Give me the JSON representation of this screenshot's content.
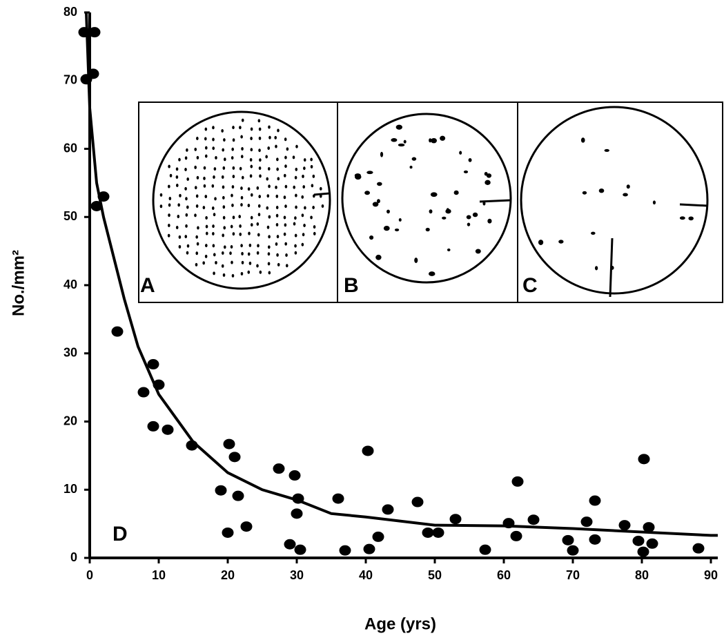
{
  "chart_data": {
    "type": "scatter",
    "x_label": "Age (yrs)",
    "y_label": "No./mm²",
    "panel_labels": [
      "A",
      "B",
      "C",
      "D"
    ],
    "xlim": [
      -1,
      91
    ],
    "ylim": [
      0,
      80
    ],
    "xticks": [
      0,
      10,
      20,
      30,
      40,
      50,
      60,
      70,
      80,
      90
    ],
    "yticks": [
      0,
      10,
      20,
      30,
      40,
      50,
      60,
      70,
      80
    ],
    "color": "#000000",
    "x": [
      -0.8,
      0.7,
      0.5,
      -0.5,
      1,
      2,
      4,
      7.8,
      9.2,
      10,
      9.2,
      11.3,
      14.8,
      20.2,
      21,
      19,
      21.5,
      20,
      22.7,
      27.4,
      29.7,
      30.2,
      30,
      29,
      30.5,
      36,
      37,
      40.3,
      40.5,
      41.8,
      43.2,
      47.5,
      49,
      50.5,
      53,
      57.3,
      60.7,
      61.8,
      62,
      64.3,
      69.3,
      70,
      72,
      73.2,
      73.2,
      77.5,
      79.5,
      80.2,
      80.3,
      81,
      81.5,
      88.2
    ],
    "values": [
      77.1,
      77.1,
      71,
      70.2,
      51.6,
      53,
      33.2,
      24.3,
      28.4,
      25.4,
      19.3,
      18.8,
      16.5,
      16.7,
      14.8,
      9.9,
      9.1,
      3.7,
      4.6,
      13.1,
      12.1,
      8.7,
      6.5,
      2,
      1.2,
      8.7,
      1.1,
      15.7,
      1.3,
      3.1,
      7.1,
      8.2,
      3.7,
      3.7,
      5.7,
      1.2,
      5.1,
      3.2,
      11.2,
      5.6,
      2.6,
      1.1,
      5.3,
      8.4,
      2.7,
      4.8,
      2.5,
      0.9,
      14.5,
      4.5,
      2.1,
      1.4
    ],
    "fit": {
      "x": [
        -0.5,
        0,
        1,
        2,
        3,
        5,
        7,
        10,
        15,
        20,
        25,
        30,
        35,
        40,
        50,
        60,
        70,
        80,
        90,
        91
      ],
      "values": [
        80,
        66,
        55,
        50,
        46,
        38,
        31,
        24,
        17,
        12.5,
        10,
        8.5,
        6.5,
        6,
        4.8,
        4.7,
        4.3,
        3.8,
        3.3,
        3.3
      ]
    }
  }
}
